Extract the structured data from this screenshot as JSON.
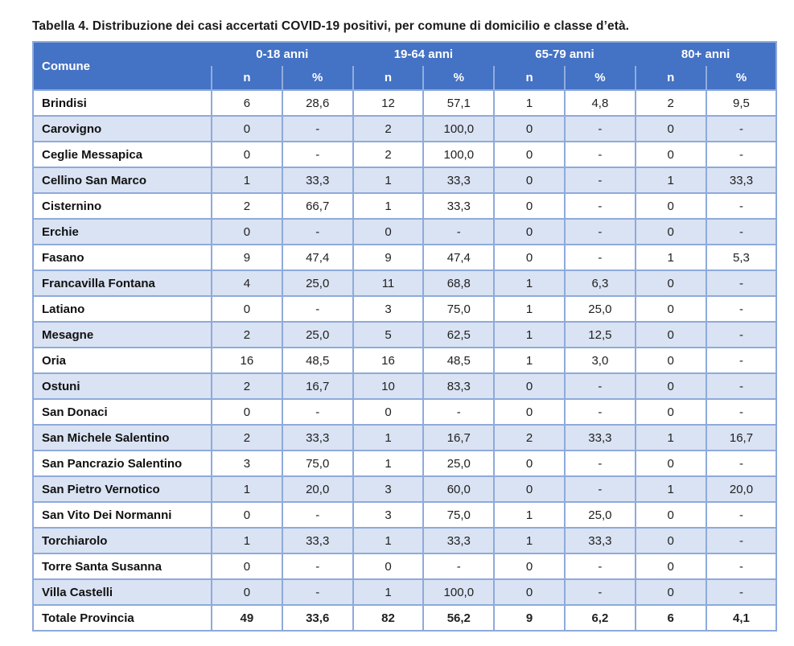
{
  "title": "Tabella 4. Distribuzione dei casi accertati COVID-19 positivi, per comune di domicilio e classe d’età.",
  "table": {
    "comune_header": "Comune",
    "age_groups": [
      "0-18 anni",
      "19-64 anni",
      "65-79 anni",
      "80+ anni"
    ],
    "sub_headers": [
      "n",
      "%"
    ],
    "rows": [
      {
        "comune": "Brindisi",
        "values": [
          "6",
          "28,6",
          "12",
          "57,1",
          "1",
          "4,8",
          "2",
          "9,5"
        ]
      },
      {
        "comune": "Carovigno",
        "values": [
          "0",
          "-",
          "2",
          "100,0",
          "0",
          "-",
          "0",
          "-"
        ]
      },
      {
        "comune": "Ceglie Messapica",
        "values": [
          "0",
          "-",
          "2",
          "100,0",
          "0",
          "-",
          "0",
          "-"
        ]
      },
      {
        "comune": "Cellino San Marco",
        "values": [
          "1",
          "33,3",
          "1",
          "33,3",
          "0",
          "-",
          "1",
          "33,3"
        ]
      },
      {
        "comune": "Cisternino",
        "values": [
          "2",
          "66,7",
          "1",
          "33,3",
          "0",
          "-",
          "0",
          "-"
        ]
      },
      {
        "comune": "Erchie",
        "values": [
          "0",
          "-",
          "0",
          "-",
          "0",
          "-",
          "0",
          "-"
        ]
      },
      {
        "comune": "Fasano",
        "values": [
          "9",
          "47,4",
          "9",
          "47,4",
          "0",
          "-",
          "1",
          "5,3"
        ]
      },
      {
        "comune": "Francavilla Fontana",
        "values": [
          "4",
          "25,0",
          "11",
          "68,8",
          "1",
          "6,3",
          "0",
          "-"
        ]
      },
      {
        "comune": "Latiano",
        "values": [
          "0",
          "-",
          "3",
          "75,0",
          "1",
          "25,0",
          "0",
          "-"
        ]
      },
      {
        "comune": "Mesagne",
        "values": [
          "2",
          "25,0",
          "5",
          "62,5",
          "1",
          "12,5",
          "0",
          "-"
        ]
      },
      {
        "comune": "Oria",
        "values": [
          "16",
          "48,5",
          "16",
          "48,5",
          "1",
          "3,0",
          "0",
          "-"
        ]
      },
      {
        "comune": "Ostuni",
        "values": [
          "2",
          "16,7",
          "10",
          "83,3",
          "0",
          "-",
          "0",
          "-"
        ]
      },
      {
        "comune": "San Donaci",
        "values": [
          "0",
          "-",
          "0",
          "-",
          "0",
          "-",
          "0",
          "-"
        ]
      },
      {
        "comune": "San Michele Salentino",
        "values": [
          "2",
          "33,3",
          "1",
          "16,7",
          "2",
          "33,3",
          "1",
          "16,7"
        ]
      },
      {
        "comune": "San Pancrazio Salentino",
        "values": [
          "3",
          "75,0",
          "1",
          "25,0",
          "0",
          "-",
          "0",
          "-"
        ]
      },
      {
        "comune": "San Pietro Vernotico",
        "values": [
          "1",
          "20,0",
          "3",
          "60,0",
          "0",
          "-",
          "1",
          "20,0"
        ]
      },
      {
        "comune": "San Vito Dei Normanni",
        "values": [
          "0",
          "-",
          "3",
          "75,0",
          "1",
          "25,0",
          "0",
          "-"
        ]
      },
      {
        "comune": "Torchiarolo",
        "values": [
          "1",
          "33,3",
          "1",
          "33,3",
          "1",
          "33,3",
          "0",
          "-"
        ]
      },
      {
        "comune": "Torre Santa Susanna",
        "values": [
          "0",
          "-",
          "0",
          "-",
          "0",
          "-",
          "0",
          "-"
        ]
      },
      {
        "comune": "Villa Castelli",
        "values": [
          "0",
          "-",
          "1",
          "100,0",
          "0",
          "-",
          "0",
          "-"
        ]
      }
    ],
    "total_row": {
      "comune": "Totale Provincia",
      "values": [
        "49",
        "33,6",
        "82",
        "56,2",
        "9",
        "6,2",
        "6",
        "4,1"
      ]
    }
  },
  "colors": {
    "header_bg": "#4472C4",
    "band_bg": "#DAE3F3",
    "border": "#8EAADB",
    "header_text": "#FFFFFF",
    "body_text": "#212121"
  }
}
